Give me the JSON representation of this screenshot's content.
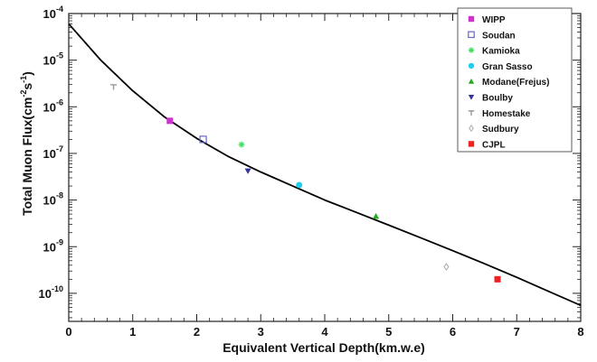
{
  "chart_data": {
    "type": "scatter",
    "title": "",
    "xlabel": "Equivalent Vertical Depth(km.w.e)",
    "ylabel_main": "Total Muon Flux(cm",
    "ylabel_exp1": "-2",
    "ylabel_mid": "s",
    "ylabel_exp2": "-1",
    "ylabel_end": ")",
    "xlim": [
      0,
      8
    ],
    "ylim": [
      2.5e-11,
      0.0001
    ],
    "yscale": "log",
    "grid": false,
    "legend_position": "top-right",
    "x_ticks": [
      "0",
      "1",
      "2",
      "3",
      "4",
      "5",
      "6",
      "7",
      "8"
    ],
    "y_ticks": [
      {
        "base": "10",
        "exp": "-4"
      },
      {
        "base": "10",
        "exp": "-5"
      },
      {
        "base": "10",
        "exp": "-6"
      },
      {
        "base": "10",
        "exp": "-7"
      },
      {
        "base": "10",
        "exp": "-8"
      },
      {
        "base": "10",
        "exp": "-9"
      },
      {
        "base": "10",
        "exp": "-10"
      }
    ],
    "series": [
      {
        "name": "WIPP",
        "color": "#cc33cc",
        "marker": "square",
        "x": 1.58,
        "y": 5e-07
      },
      {
        "name": "Soudan",
        "color": "#6666cc",
        "marker": "open-square",
        "x": 2.1,
        "y": 2e-07
      },
      {
        "name": "Kamioka",
        "color": "#44dd66",
        "marker": "star",
        "x": 2.7,
        "y": 1.55e-07
      },
      {
        "name": "Gran Sasso",
        "color": "#22ccee",
        "marker": "circle",
        "x": 3.6,
        "y": 2.1e-08
      },
      {
        "name": "Modane(Frejus)",
        "color": "#22aa22",
        "marker": "triangle-up",
        "x": 4.8,
        "y": 4.5e-09
      },
      {
        "name": "Boulby",
        "color": "#333399",
        "marker": "triangle-down",
        "x": 2.8,
        "y": 4.2e-08
      },
      {
        "name": "Homestake",
        "color": "#999999",
        "marker": "tri-down",
        "x": 0.7,
        "y": 2.7e-06
      },
      {
        "name": "Sudbury",
        "color": "#aaaaaa",
        "marker": "open-diamond",
        "x": 5.9,
        "y": 3.7e-10
      },
      {
        "name": "CJPL",
        "color": "#ee2222",
        "marker": "square-red",
        "x": 6.7,
        "y": 2e-10
      }
    ],
    "fit_curve": {
      "color": "#000000",
      "x": [
        0,
        0.5,
        1,
        1.5,
        2,
        2.5,
        3,
        3.5,
        4,
        4.5,
        5,
        5.5,
        6,
        6.5,
        7,
        7.5,
        8
      ],
      "y": [
        6e-05,
        1e-05,
        2.2e-06,
        6e-07,
        2.1e-07,
        8.5e-08,
        4e-08,
        2e-08,
        1e-08,
        5.4e-09,
        2.9e-09,
        1.55e-09,
        8.2e-10,
        4.3e-10,
        2.2e-10,
        1.1e-10,
        5.5e-11
      ]
    }
  }
}
